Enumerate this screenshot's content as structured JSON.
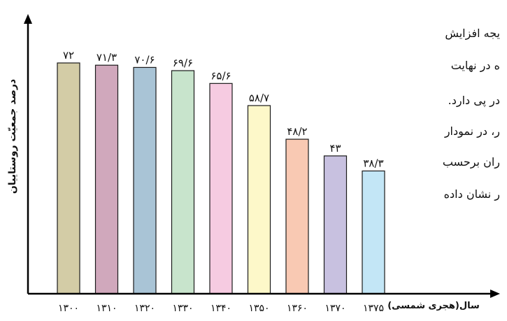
{
  "background_text": [
    "یجه افزایش",
    "ه در نهایت",
    "در پی دارد.",
    "ر، در نمودار",
    "ران برحسب",
    "ر نشان داده"
  ],
  "chart_data": {
    "type": "bar",
    "categories": [
      "۱۳۰۰",
      "۱۳۱۰",
      "۱۳۲۰",
      "۱۳۳۰",
      "۱۳۴۰",
      "۱۳۵۰",
      "۱۳۶۰",
      "۱۳۷۰",
      "۱۳۷۵"
    ],
    "values": [
      72,
      71.3,
      70.6,
      69.6,
      65.6,
      58.7,
      48.2,
      43,
      38.3
    ],
    "value_labels": [
      "۷۲",
      "۷۱/۳",
      "۷۰/۶",
      "۶۹/۶",
      "۶۵/۶",
      "۵۸/۷",
      "۴۸/۲",
      "۴۳",
      "۳۸/۳"
    ],
    "colors": [
      "#d3cca6",
      "#d0a8bc",
      "#a9c4d6",
      "#c8e4cc",
      "#f6cbe1",
      "#fdf8c9",
      "#f9c9b3",
      "#c8c1e0",
      "#c3e6f6"
    ],
    "xlabel": "سال(هجری شمسی)",
    "ylabel": "درصد جمعیّت روستاییان",
    "ylim": [
      0,
      80
    ],
    "grid": false
  }
}
